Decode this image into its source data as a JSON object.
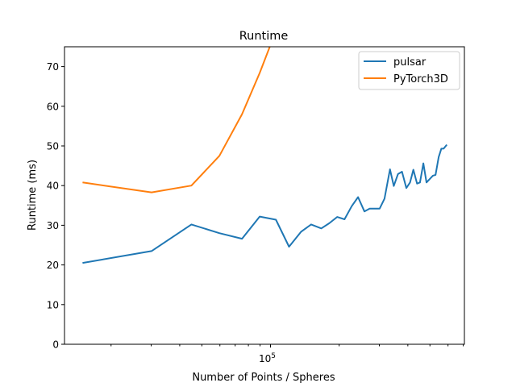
{
  "chart_data": {
    "type": "line",
    "title": "Runtime",
    "xlabel": "Number of Points / Spheres",
    "ylabel": "Runtime (ms)",
    "xscale": "log",
    "xlim": [
      12500,
      708000
    ],
    "ylim": [
      0,
      75
    ],
    "yticks": [
      0,
      10,
      20,
      30,
      40,
      50,
      60,
      70
    ],
    "xtick_labels": [
      {
        "value": 100000,
        "base": "10",
        "exp": "5"
      }
    ],
    "grid": false,
    "legend_position": "top-right",
    "series": [
      {
        "name": "pulsar",
        "color": "#1f77b4",
        "x": [
          15000,
          30100,
          45000,
          59700,
          75000,
          89700,
          105600,
          120600,
          136300,
          150700,
          167000,
          181000,
          196000,
          211000,
          227000,
          242000,
          258000,
          272000,
          301000,
          316000,
          334000,
          347000,
          362000,
          377000,
          394000,
          409000,
          423000,
          439000,
          452000,
          468000,
          483000,
          515000,
          529000,
          546000,
          561000,
          574000,
          593000
        ],
        "y": [
          20.5,
          23.5,
          30.2,
          28.0,
          26.6,
          32.2,
          31.4,
          24.6,
          28.4,
          30.2,
          29.2,
          30.5,
          32.1,
          31.5,
          34.8,
          37.1,
          33.5,
          34.2,
          34.2,
          36.7,
          44.1,
          39.9,
          42.9,
          43.5,
          39.4,
          40.8,
          44.0,
          40.5,
          40.8,
          45.6,
          40.8,
          42.5,
          42.7,
          47.2,
          49.3,
          49.3,
          50.3
        ]
      },
      {
        "name": "PyTorch3D",
        "color": "#ff7f0e",
        "x": [
          15000,
          30100,
          45000,
          59700,
          75000,
          89700,
          105600
        ],
        "y": [
          40.8,
          38.3,
          40.0,
          47.5,
          58.0,
          68.4,
          79.0
        ]
      }
    ]
  }
}
